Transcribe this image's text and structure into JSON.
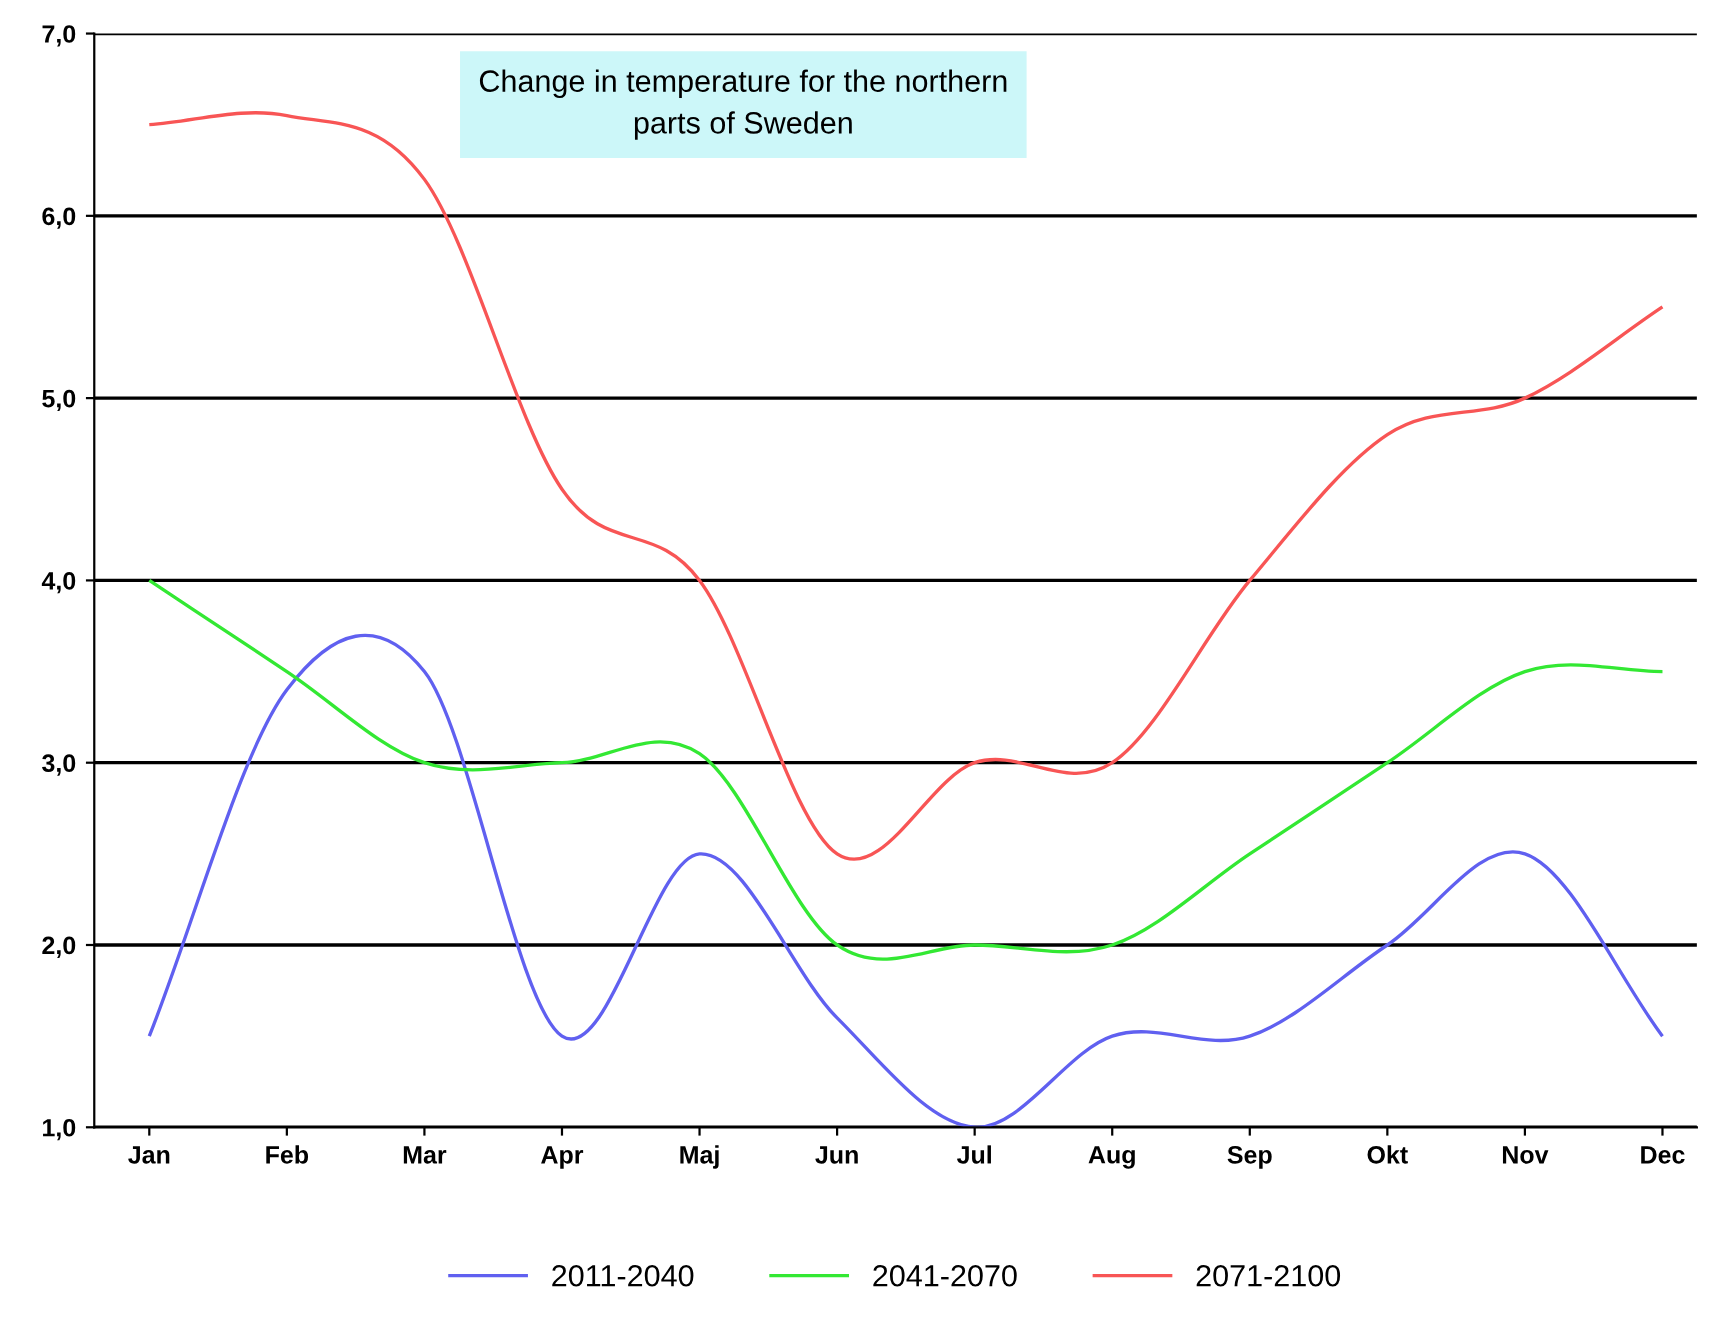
{
  "chart_data": {
    "type": "line",
    "title": "Change in temperature for the northern\nparts of Sweden",
    "categories": [
      "Jan",
      "Feb",
      "Mar",
      "Apr",
      "Maj",
      "Jun",
      "Jul",
      "Aug",
      "Sep",
      "Okt",
      "Nov",
      "Dec"
    ],
    "series": [
      {
        "name": "2011-2040",
        "color": "#6060f0",
        "values": [
          1.5,
          3.4,
          3.5,
          1.5,
          2.5,
          1.6,
          1.0,
          1.5,
          1.5,
          2.0,
          2.5,
          1.5
        ]
      },
      {
        "name": "2041-2070",
        "color": "#33e833",
        "values": [
          4.0,
          3.5,
          3.0,
          3.0,
          3.05,
          2.0,
          2.0,
          2.0,
          2.5,
          3.0,
          3.5,
          3.5
        ]
      },
      {
        "name": "2071-2100",
        "color": "#f85555",
        "values": [
          6.5,
          6.55,
          6.2,
          4.5,
          4.0,
          2.5,
          3.0,
          3.0,
          4.0,
          4.8,
          5.0,
          5.5
        ]
      }
    ],
    "ylim": [
      1,
      7
    ],
    "yticks": [
      {
        "value": 1,
        "label": "1,0"
      },
      {
        "value": 2,
        "label": "2,0"
      },
      {
        "value": 3,
        "label": "3,0"
      },
      {
        "value": 4,
        "label": "4,0"
      },
      {
        "value": 5,
        "label": "5,0"
      },
      {
        "value": 6,
        "label": "6,0"
      },
      {
        "value": 7,
        "label": "7,0"
      }
    ],
    "grid": "y",
    "legend": "bottom",
    "marker": "none",
    "line_style": "solid"
  }
}
